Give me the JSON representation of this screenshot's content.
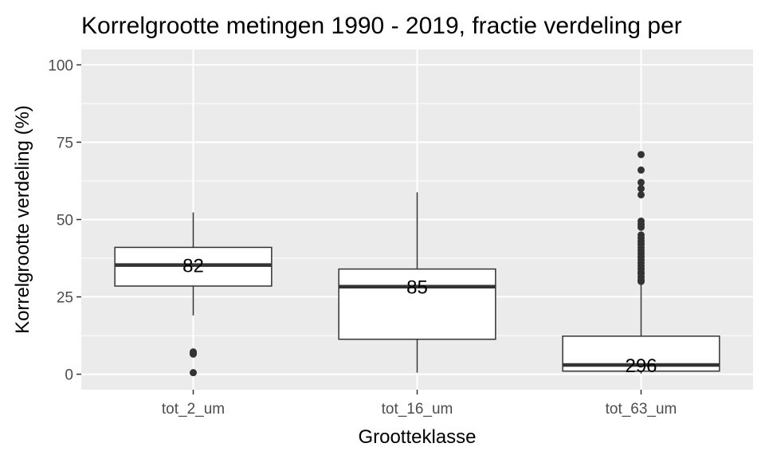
{
  "chart_data": {
    "type": "boxplot",
    "title": "Korrelgrootte metingen 1990 - 2019, fractie verdeling per",
    "xlabel": "Grootteklasse",
    "ylabel": "Korrelgrootte verdeling (%)",
    "ylim": [
      -5,
      105
    ],
    "yticks": [
      0,
      25,
      50,
      75,
      100
    ],
    "grid": true,
    "colors": {
      "panel": "#ebebeb",
      "grid": "#ffffff",
      "box_fill": "#ffffff",
      "box_line": "#333333",
      "outlier": "#333333"
    },
    "categories": [
      "tot_2_um",
      "tot_16_um",
      "tot_63_um"
    ],
    "boxes": [
      {
        "category": "tot_2_um",
        "whisker_low": 19,
        "q1": 28.5,
        "median": 35.3,
        "q3": 41,
        "whisker_high": 52.3,
        "outliers": [
          7.2,
          6.8,
          6.5,
          0.5
        ],
        "count_label": "82"
      },
      {
        "category": "tot_16_um",
        "whisker_low": 0.5,
        "q1": 11.3,
        "median": 28.3,
        "q3": 34,
        "whisker_high": 58.8,
        "outliers": [],
        "count_label": "85"
      },
      {
        "category": "tot_63_um",
        "whisker_low": 0.2,
        "q1": 1,
        "median": 3,
        "q3": 12.3,
        "whisker_high": 29.5,
        "outliers": [
          71,
          66,
          62,
          60,
          58,
          49.5,
          48.5,
          47.5,
          45,
          44,
          43,
          42,
          41,
          40,
          39,
          38,
          37,
          36,
          35,
          34,
          33,
          32.5,
          31.5,
          30.5,
          30
        ],
        "count_label": "296"
      }
    ]
  }
}
